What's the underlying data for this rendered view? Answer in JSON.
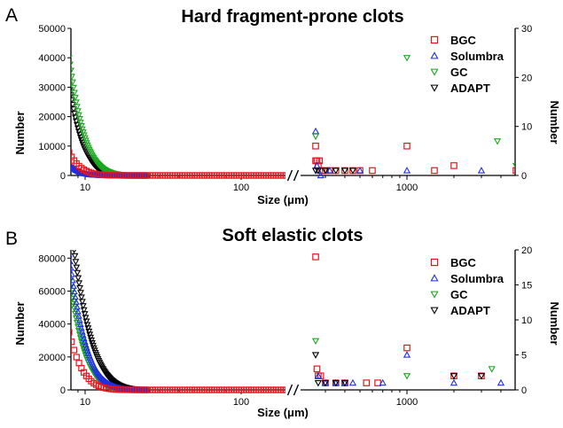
{
  "chart_data": [
    {
      "type": "scatter",
      "panel_label": "A",
      "title": "Hard fragment-prone clots",
      "xlabel": "Size (μm)",
      "ylabel_left": "Number",
      "ylabel_right": "Number",
      "x_scale": "log (broken axis)",
      "x_break": [
        200,
        255
      ],
      "x_ticks": [
        "10",
        "100",
        "1000"
      ],
      "ylim_left": [
        0,
        50000
      ],
      "yticks_left": [
        "0",
        "10000",
        "20000",
        "30000",
        "40000",
        "50000"
      ],
      "ylim_right": [
        0,
        30
      ],
      "yticks_right": [
        "0",
        "10",
        "20",
        "30"
      ],
      "legend_position": "top-right",
      "series": [
        {
          "name": "BGC",
          "color": "#e8141d",
          "marker": "square",
          "left_axis_curve": {
            "x_start": 7.9,
            "x_end": 200,
            "y0": 7800,
            "decay": 0.72
          },
          "right_axis_points": [
            [
              260,
              6
            ],
            [
              260,
              3
            ],
            [
              265,
              3
            ],
            [
              270,
              2
            ],
            [
              275,
              3
            ],
            [
              285,
              1
            ],
            [
              300,
              1
            ],
            [
              320,
              1
            ],
            [
              350,
              1
            ],
            [
              400,
              1
            ],
            [
              450,
              1
            ],
            [
              500,
              1
            ],
            [
              600,
              1
            ],
            [
              1000,
              6
            ],
            [
              1500,
              1
            ],
            [
              2000,
              2
            ],
            [
              5000,
              1
            ],
            [
              6000,
              1
            ]
          ]
        },
        {
          "name": "Solumbra",
          "color": "#1f2fe0",
          "marker": "triangle-up",
          "left_axis_curve": {
            "x_start": 8.0,
            "x_end": 25,
            "y0": 3500,
            "decay": 0.9
          },
          "right_axis_points": [
            [
              260,
              9
            ],
            [
              265,
              2
            ],
            [
              270,
              1
            ],
            [
              280,
              0
            ],
            [
              320,
              1
            ],
            [
              500,
              1
            ],
            [
              1000,
              1
            ],
            [
              3000,
              1
            ],
            [
              6000,
              1
            ]
          ]
        },
        {
          "name": "GC",
          "color": "#19a61c",
          "marker": "triangle-down",
          "left_axis_curve": {
            "x_start": 7.9,
            "x_end": 25,
            "y0": 40000,
            "decay": 0.55
          },
          "right_axis_points": [
            [
              260,
              8
            ],
            [
              1000,
              24
            ],
            [
              3800,
              7
            ],
            [
              5000,
              2
            ]
          ]
        },
        {
          "name": "ADAPT",
          "color": "#000000",
          "marker": "triangle-down",
          "left_axis_curve": {
            "x_start": 7.9,
            "x_end": 25,
            "y0": 31000,
            "decay": 0.6
          },
          "right_axis_points": [
            [
              260,
              1
            ],
            [
              270,
              1
            ],
            [
              300,
              1
            ],
            [
              350,
              1
            ],
            [
              400,
              1
            ],
            [
              450,
              1
            ]
          ]
        }
      ]
    },
    {
      "type": "scatter",
      "panel_label": "B",
      "title": "Soft elastic clots",
      "xlabel": "Size (μm)",
      "ylabel_left": "Number",
      "ylabel_right": "Number",
      "x_scale": "log (broken axis)",
      "x_break": [
        200,
        255
      ],
      "x_ticks": [
        "10",
        "100",
        "1000"
      ],
      "ylim_left": [
        0,
        85000
      ],
      "yticks_left": [
        "0",
        "20000",
        "40000",
        "60000",
        "80000"
      ],
      "ylim_right": [
        0,
        20
      ],
      "yticks_right": [
        "0",
        "5",
        "10",
        "15",
        "20"
      ],
      "legend_position": "top-right",
      "series": [
        {
          "name": "BGC",
          "color": "#e8141d",
          "marker": "square",
          "left_axis_curve": {
            "x_start": 7.9,
            "x_end": 200,
            "y0": 35000,
            "decay": 0.62
          },
          "right_axis_points": [
            [
              260,
              19
            ],
            [
              265,
              3
            ],
            [
              270,
              2
            ],
            [
              280,
              2
            ],
            [
              300,
              1
            ],
            [
              350,
              1
            ],
            [
              400,
              1
            ],
            [
              550,
              1
            ],
            [
              650,
              1
            ],
            [
              1000,
              6
            ],
            [
              2000,
              2
            ],
            [
              3000,
              2
            ]
          ]
        },
        {
          "name": "Solumbra",
          "color": "#1f2fe0",
          "marker": "triangle-up",
          "left_axis_curve": {
            "x_start": 7.9,
            "x_end": 25,
            "y0": 82000,
            "decay": 0.5
          },
          "right_axis_points": [
            [
              270,
              2
            ],
            [
              300,
              1
            ],
            [
              350,
              1
            ],
            [
              400,
              1
            ],
            [
              450,
              1
            ],
            [
              700,
              1
            ],
            [
              1000,
              5
            ],
            [
              2000,
              1
            ],
            [
              4000,
              1
            ]
          ]
        },
        {
          "name": "GC",
          "color": "#19a61c",
          "marker": "triangle-down",
          "left_axis_curve": {
            "x_start": 7.9,
            "x_end": 25,
            "y0": 70000,
            "decay": 0.55
          },
          "right_axis_points": [
            [
              260,
              7
            ],
            [
              1000,
              2
            ],
            [
              3500,
              3
            ]
          ]
        },
        {
          "name": "ADAPT",
          "color": "#000000",
          "marker": "triangle-down",
          "left_axis_curve": {
            "x_start": 8.5,
            "x_end": 25,
            "y0": 85000,
            "decay": 0.42
          },
          "right_axis_points": [
            [
              260,
              5
            ],
            [
              270,
              1
            ],
            [
              300,
              1
            ],
            [
              350,
              1
            ],
            [
              400,
              1
            ],
            [
              2000,
              2
            ],
            [
              3000,
              2
            ],
            [
              6000,
              1
            ]
          ]
        }
      ]
    }
  ]
}
